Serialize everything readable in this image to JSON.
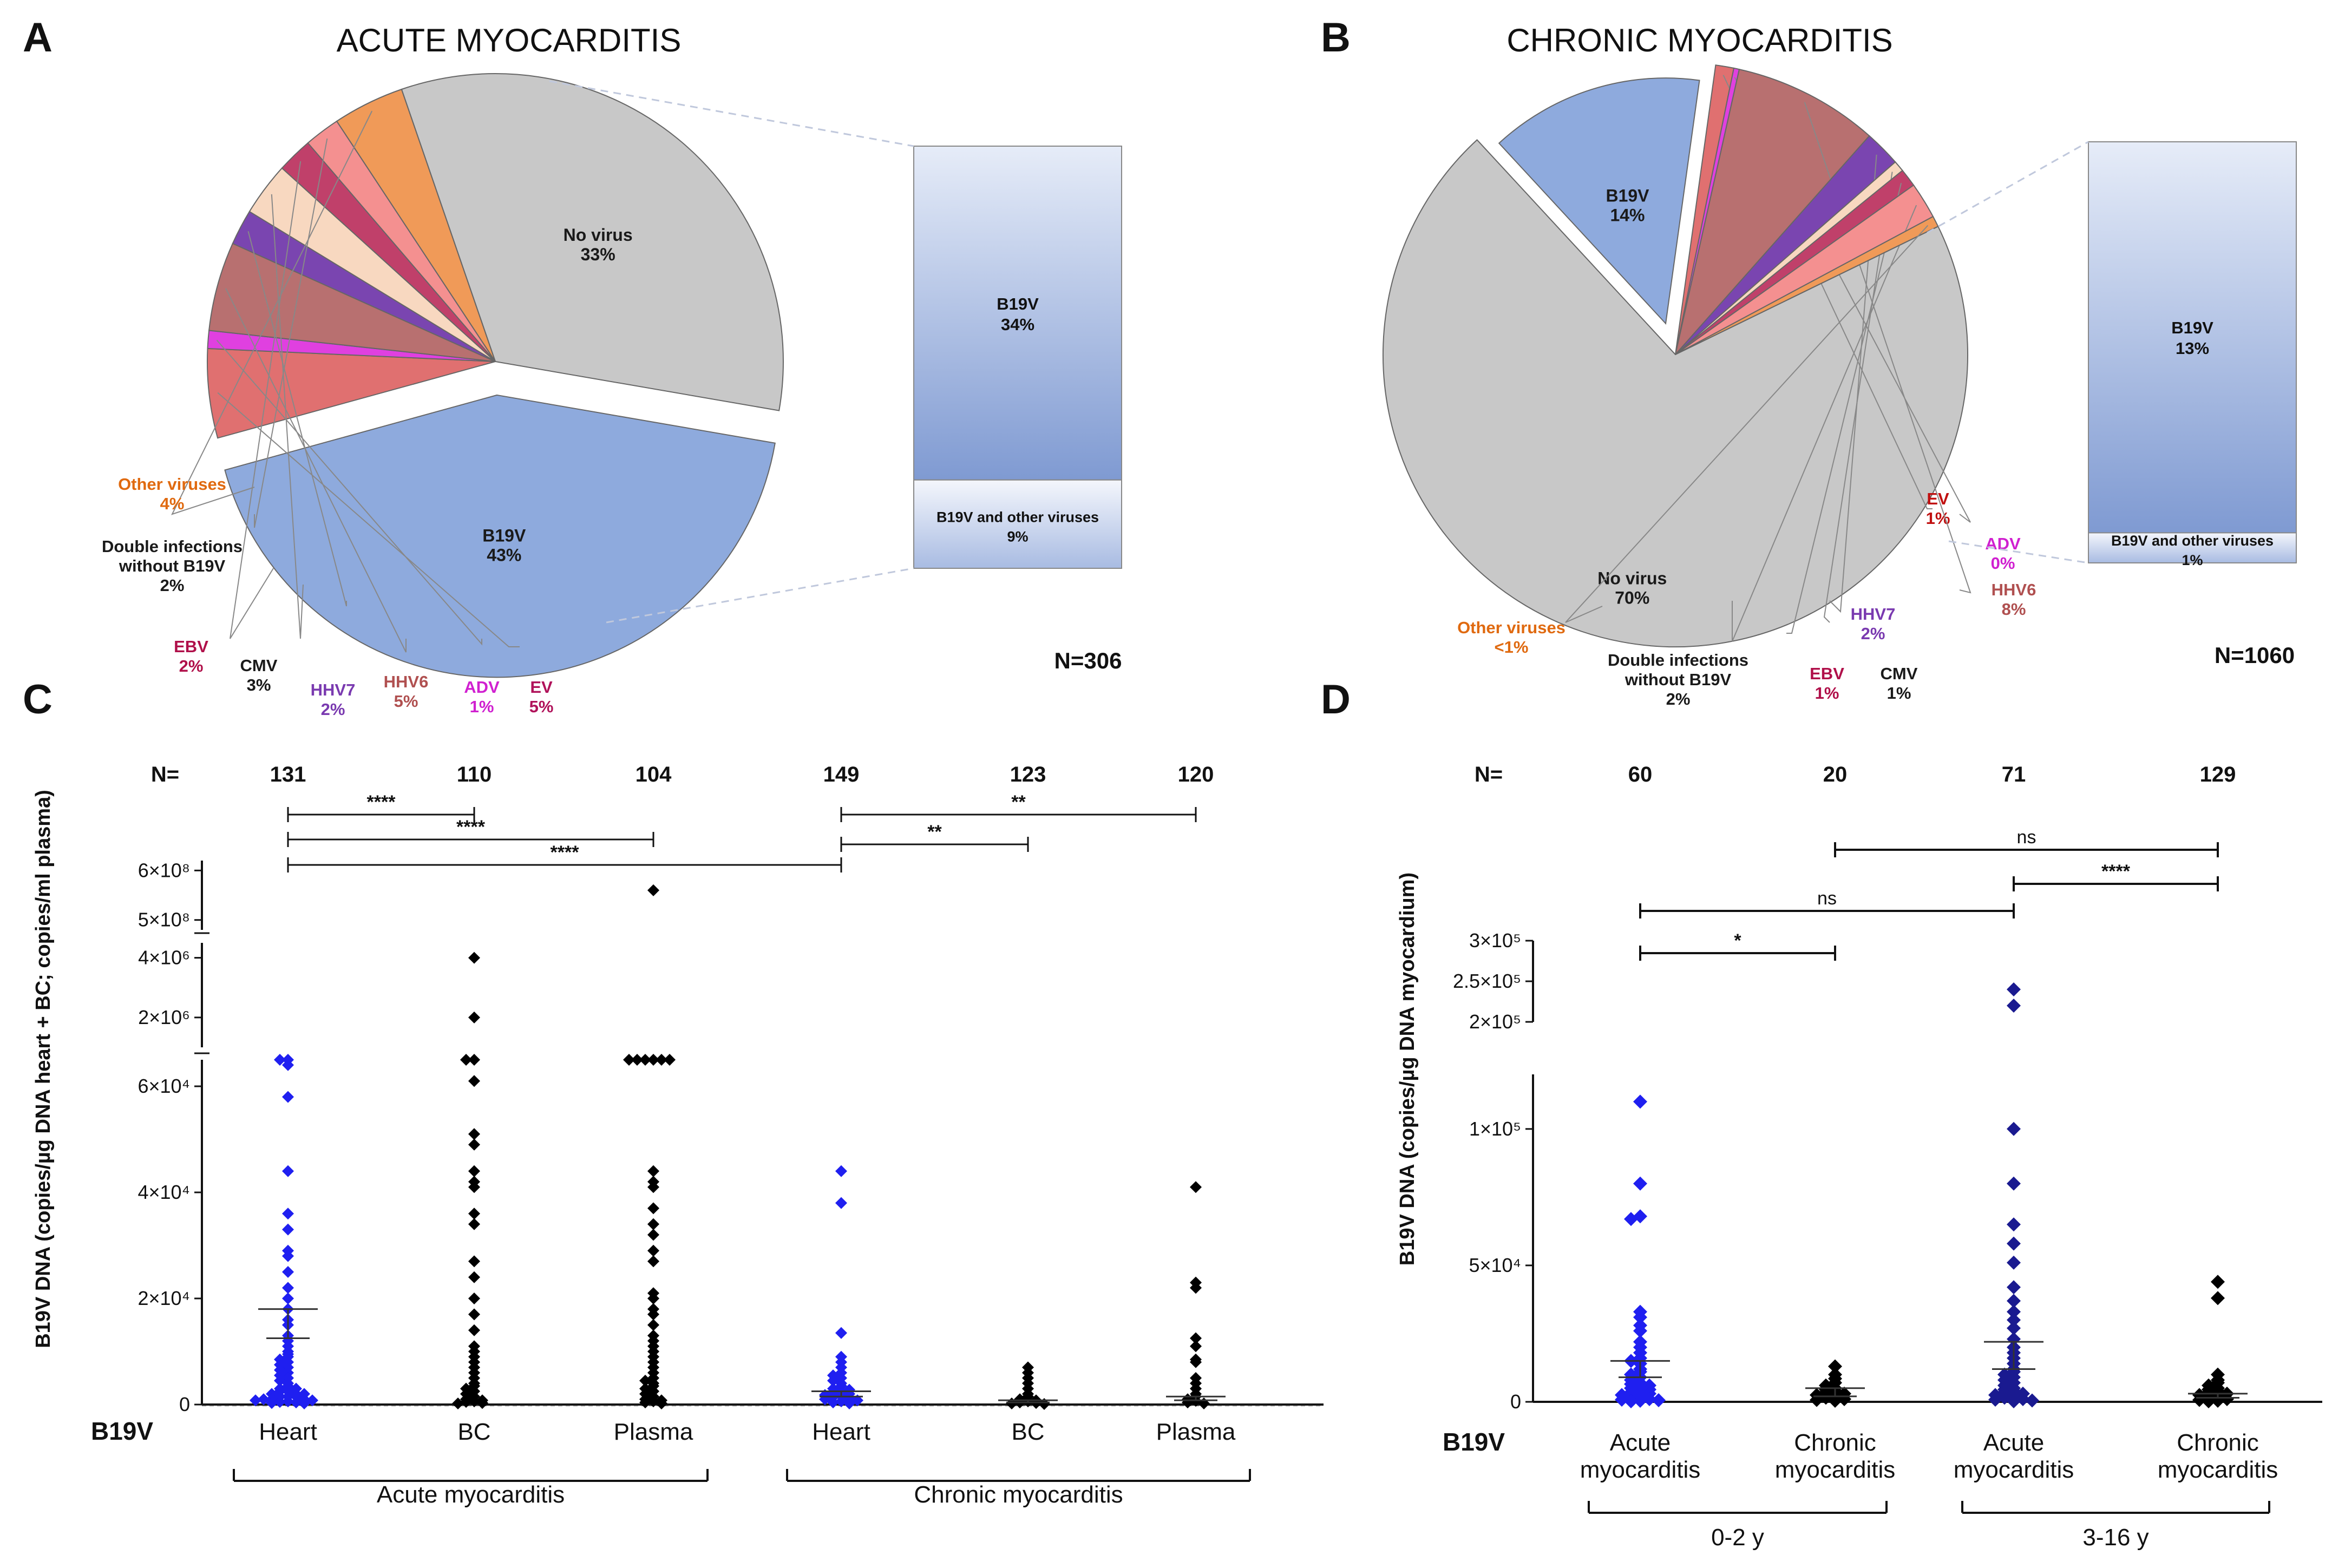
{
  "chart_data": [
    {
      "panel": "A",
      "type": "pie",
      "title": "ACUTE MYOCARDITIS",
      "n_label": "N=306",
      "slices": [
        {
          "label": "No virus",
          "pct_label": "33%",
          "value": 33,
          "color": "#c8c8c8",
          "text_color": "#1a1a1a"
        },
        {
          "label": "B19V",
          "pct_label": "43%",
          "value": 43,
          "color": "#8eaadd",
          "text_color": "#1a1a1a"
        },
        {
          "label": "EV",
          "pct_label": "5%",
          "value": 5,
          "color": "#e07070",
          "text_color": "#b0125a"
        },
        {
          "label": "ADV",
          "pct_label": "1%",
          "value": 1,
          "color": "#e040e0",
          "text_color": "#d020d0"
        },
        {
          "label": "HHV6",
          "pct_label": "5%",
          "value": 5,
          "color": "#b87070",
          "text_color": "#b05050"
        },
        {
          "label": "HHV7",
          "pct_label": "2%",
          "value": 2,
          "color": "#7a45b0",
          "text_color": "#7a3ab0"
        },
        {
          "label": "CMV",
          "pct_label": "3%",
          "value": 3,
          "color": "#f8d8c0",
          "text_color": "#1a1a1a"
        },
        {
          "label": "EBV",
          "pct_label": "2%",
          "value": 2,
          "color": "#c0406a",
          "text_color": "#b0104a"
        },
        {
          "label": "Double infections without B19V",
          "label_lines": [
            "Double infections",
            "without B19V"
          ],
          "pct_label": "2%",
          "value": 2,
          "color": "#f49090",
          "text_color": "#1a1a1a"
        },
        {
          "label": "Other viruses",
          "pct_label": "4%",
          "value": 4,
          "color": "#f09a58",
          "text_color": "#e06a10"
        }
      ],
      "breakdown_bar": {
        "segments": [
          {
            "label": "B19V",
            "pct_label": "34%",
            "value": 34
          },
          {
            "label": "B19V and other viruses",
            "pct_label": "9%",
            "value": 9
          }
        ]
      }
    },
    {
      "panel": "B",
      "type": "pie",
      "title": "CHRONIC MYOCARDITIS",
      "n_label": "N=1060",
      "slices": [
        {
          "label": "No virus",
          "pct_label": "70%",
          "value": 70,
          "color": "#c8c8c8",
          "text_color": "#1a1a1a"
        },
        {
          "label": "B19V",
          "pct_label": "14%",
          "value": 14,
          "color": "#8eaadd",
          "text_color": "#1a1a1a"
        },
        {
          "label": "EV",
          "pct_label": "1%",
          "value": 1,
          "color": "#e07070",
          "text_color": "#c01010"
        },
        {
          "label": "ADV",
          "pct_label": "0%",
          "value": 0.3,
          "color": "#e040e0",
          "text_color": "#d020d0"
        },
        {
          "label": "HHV6",
          "pct_label": "8%",
          "value": 8,
          "color": "#b87070",
          "text_color": "#b05050"
        },
        {
          "label": "HHV7",
          "pct_label": "2%",
          "value": 2,
          "color": "#7a45b0",
          "text_color": "#7a3ab0"
        },
        {
          "label": "CMV",
          "pct_label": "1%",
          "value": 0.6,
          "color": "#f8d8c0",
          "text_color": "#1a1a1a"
        },
        {
          "label": "EBV",
          "pct_label": "1%",
          "value": 1,
          "color": "#c0406a",
          "text_color": "#b0104a"
        },
        {
          "label": "Double infections without B19V",
          "label_lines": [
            "Double infections",
            "without B19V"
          ],
          "pct_label": "2%",
          "value": 2,
          "color": "#f49090",
          "text_color": "#1a1a1a"
        },
        {
          "label": "Other viruses",
          "pct_label": "<1%",
          "value": 0.6,
          "color": "#f09a58",
          "text_color": "#e06a10"
        }
      ],
      "breakdown_bar": {
        "segments": [
          {
            "label": "B19V",
            "pct_label": "13%",
            "value": 13
          },
          {
            "label": "B19V and other viruses",
            "pct_label": "1%",
            "value": 1
          }
        ]
      }
    },
    {
      "panel": "C",
      "type": "scatter",
      "ylabel": "B19V DNA (copies/µg DNA heart + BC; copies/ml plasma)",
      "row_label": "B19V",
      "n_prefix": "N=",
      "yticks": [
        {
          "label": "0",
          "value": 0
        },
        {
          "label": "2×10⁴",
          "value": 20000
        },
        {
          "label": "4×10⁴",
          "value": 40000
        },
        {
          "label": "6×10⁴",
          "value": 60000
        },
        {
          "label": "2×10⁶",
          "value": 2000000
        },
        {
          "label": "4×10⁶",
          "value": 4000000
        },
        {
          "label": "5×10⁸",
          "value": 500000000
        },
        {
          "label": "6×10⁸",
          "value": 600000000
        }
      ],
      "y_segments": [
        {
          "range": [
            0,
            65000
          ]
        },
        {
          "range": [
            1000000,
            4500000
          ]
        },
        {
          "range": [
            480000000,
            620000000
          ]
        }
      ],
      "groups": [
        {
          "name": "Heart",
          "n": "131",
          "color": "#1f1ff0",
          "mean": 18000,
          "sem": 12500,
          "values": [
            65000,
            65000,
            64000,
            58000,
            44000,
            36000,
            33000,
            29000,
            28000,
            25000,
            22000,
            20000,
            18000,
            16000,
            15000,
            13000,
            12000,
            11000,
            10000,
            9500,
            9000,
            8500,
            8000,
            7500,
            7000,
            6500,
            6000,
            5500,
            5000,
            4500,
            4000,
            3500,
            3000,
            3000,
            2500,
            2500,
            2000,
            2000,
            2000,
            1500,
            1500,
            1500,
            1000,
            1000,
            1000,
            800,
            800,
            600,
            500,
            400,
            300,
            200
          ]
        },
        {
          "name": "BC",
          "n": "110",
          "color": "#000000",
          "mean": 0,
          "sem": 0,
          "values": [
            4000000,
            2000000,
            65000,
            65000,
            61000,
            51000,
            49000,
            44000,
            42000,
            41000,
            36000,
            34000,
            27000,
            24000,
            20000,
            17000,
            14000,
            11000,
            10000,
            9000,
            8000,
            7000,
            6000,
            5000,
            4000,
            3500,
            3000,
            2500,
            2000,
            1500,
            1000,
            800,
            600,
            500,
            300,
            200
          ]
        },
        {
          "name": "Plasma",
          "n": "104",
          "color": "#000000",
          "mean": 0,
          "sem": 0,
          "values": [
            560000000,
            65000,
            65000,
            65000,
            65000,
            65000,
            65000,
            44000,
            42000,
            41000,
            37000,
            34000,
            32000,
            29000,
            27000,
            21000,
            20000,
            18000,
            17000,
            15000,
            13000,
            12000,
            11000,
            10000,
            9000,
            8000,
            7000,
            6000,
            5000,
            4500,
            4000,
            3500,
            3000,
            2500,
            2000,
            1500,
            1000,
            800,
            600,
            400,
            200
          ]
        },
        {
          "name": "Heart",
          "n": "149",
          "color": "#1f1ff0",
          "mean": 2500,
          "sem": 1500,
          "values": [
            44000,
            38000,
            13500,
            9000,
            8000,
            7000,
            6000,
            5500,
            5000,
            4500,
            4000,
            3500,
            3000,
            2800,
            2500,
            2200,
            2000,
            1800,
            1600,
            1400,
            1200,
            1000,
            800,
            600,
            400,
            200
          ]
        },
        {
          "name": "BC",
          "n": "123",
          "color": "#000000",
          "mean": 800,
          "sem": 400,
          "values": [
            7000,
            6000,
            5000,
            4000,
            3000,
            2000,
            1500,
            1000,
            800,
            600,
            400,
            300,
            200,
            100
          ]
        },
        {
          "name": "Plasma",
          "n": "120",
          "color": "#000000",
          "mean": 1500,
          "sem": 800,
          "values": [
            41000,
            23000,
            22000,
            12500,
            11000,
            8500,
            8000,
            5000,
            4000,
            3000,
            2000,
            1500,
            1000,
            700,
            400,
            200
          ]
        }
      ],
      "comparisons": [
        {
          "from": 0,
          "to": 1,
          "label": "****"
        },
        {
          "from": 0,
          "to": 2,
          "label": "****"
        },
        {
          "from": 0,
          "to": 3,
          "label": "****"
        },
        {
          "from": 3,
          "to": 5,
          "label": "**"
        },
        {
          "from": 3,
          "to": 4,
          "label": "**"
        }
      ],
      "brackets": [
        {
          "label": "Acute myocarditis",
          "from": 0,
          "to": 2
        },
        {
          "label": "Chronic myocarditis",
          "from": 3,
          "to": 5
        }
      ]
    },
    {
      "panel": "D",
      "type": "scatter",
      "ylabel": "B19V DNA (copies/µg DNA myocardium)",
      "row_label": "B19V",
      "n_prefix": "N=",
      "yticks": [
        {
          "label": "0",
          "value": 0
        },
        {
          "label": "5×10⁴",
          "value": 50000
        },
        {
          "label": "1×10⁵",
          "value": 100000
        },
        {
          "label": "2×10⁵",
          "value": 200000
        },
        {
          "label": "2.5×10⁵",
          "value": 250000
        },
        {
          "label": "3×10⁵",
          "value": 300000
        }
      ],
      "y_segments": [
        {
          "range": [
            0,
            120000
          ]
        },
        {
          "range": [
            200000,
            300000
          ]
        }
      ],
      "groups": [
        {
          "name_lines": [
            "Acute",
            "myocarditis"
          ],
          "n": "60",
          "color": "#1f1ff0",
          "mean": 15000,
          "sem": 9000,
          "values": [
            110000,
            80000,
            68000,
            67000,
            33000,
            31000,
            28000,
            26000,
            22000,
            20000,
            18000,
            16000,
            15000,
            14000,
            12000,
            11000,
            10000,
            9000,
            8000,
            7000,
            6500,
            6000,
            5500,
            5000,
            4500,
            4000,
            3500,
            3000,
            2500,
            2000,
            1500,
            1000,
            800,
            600,
            400,
            200
          ]
        },
        {
          "name_lines": [
            "Chronic",
            "myocarditis"
          ],
          "n": "20",
          "color": "#000000",
          "mean": 5000,
          "sem": 2000,
          "values": [
            13000,
            10000,
            8500,
            7000,
            6000,
            5000,
            4500,
            4000,
            3500,
            3000,
            2500,
            2000,
            1500,
            1000,
            700,
            400
          ]
        },
        {
          "name_lines": [
            "Acute",
            "myocarditis"
          ],
          "n": "71",
          "color": "#1a1a90",
          "mean": 22000,
          "sem": 12000,
          "values": [
            240000,
            220000,
            100000,
            80000,
            65000,
            58000,
            51000,
            42000,
            37000,
            33000,
            30000,
            27000,
            23000,
            20000,
            18000,
            16000,
            14000,
            12000,
            11000,
            10000,
            9000,
            8000,
            7000,
            6000,
            5000,
            4500,
            4000,
            3500,
            3000,
            2500,
            2000,
            1500,
            1000,
            800,
            500,
            200
          ]
        },
        {
          "name_lines": [
            "Chronic",
            "myocarditis"
          ],
          "n": "129",
          "color": "#000000",
          "mean": 3000,
          "sem": 1500,
          "values": [
            44000,
            38000,
            10000,
            8000,
            7000,
            6000,
            5000,
            4500,
            4000,
            3500,
            3000,
            2500,
            2000,
            1500,
            1000,
            700,
            400,
            200
          ]
        }
      ],
      "comparisons": [
        {
          "from": 1,
          "to": 3,
          "label": "ns"
        },
        {
          "from": 2,
          "to": 3,
          "label": "****"
        },
        {
          "from": 0,
          "to": 2,
          "label": "ns"
        },
        {
          "from": 0,
          "to": 1,
          "label": "*"
        }
      ],
      "brackets": [
        {
          "label": "0-2 y",
          "from": 0,
          "to": 1
        },
        {
          "label": "3-16 y",
          "from": 2,
          "to": 3
        }
      ]
    }
  ]
}
